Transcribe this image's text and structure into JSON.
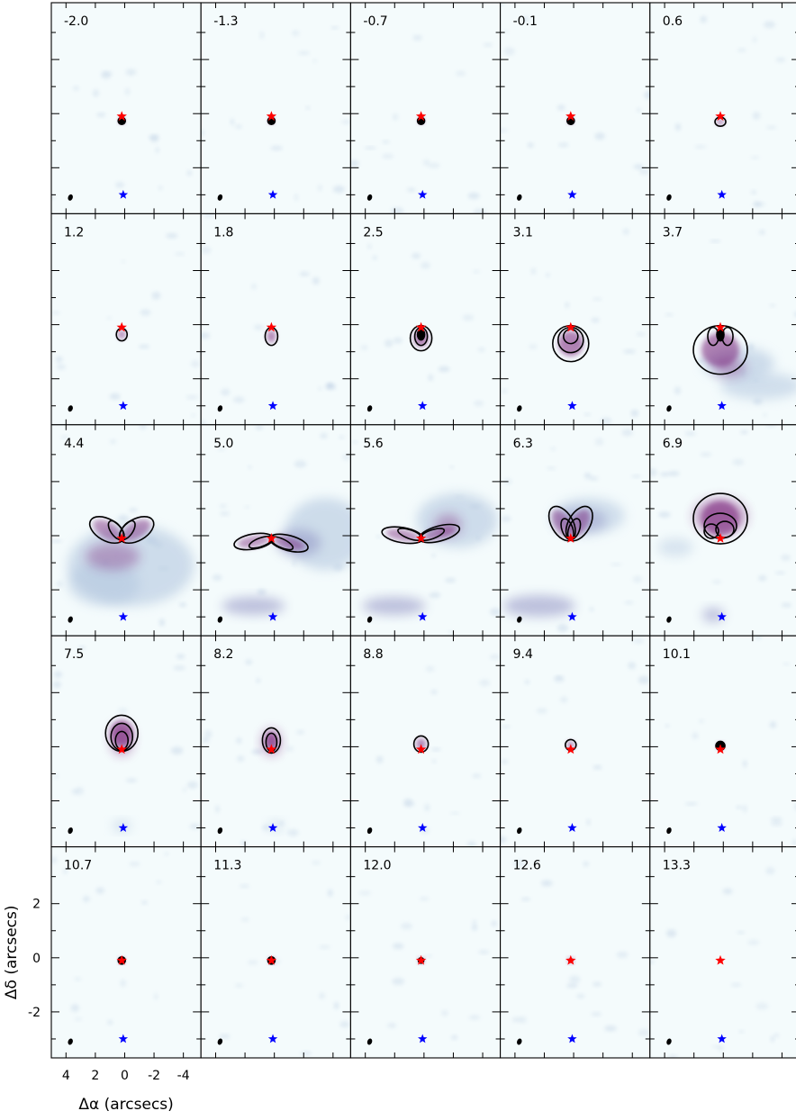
{
  "chart_data": {
    "type": "heatmap",
    "description_kind": "channel-map",
    "channel_labels": [
      "-2.0",
      "-1.3",
      "-0.7",
      "-0.1",
      "0.6",
      "1.2",
      "1.8",
      "2.5",
      "3.1",
      "3.7",
      "4.4",
      "5.0",
      "5.6",
      "6.3",
      "6.9",
      "7.5",
      "8.2",
      "8.8",
      "9.4",
      "10.1",
      "10.7",
      "11.3",
      "12.0",
      "12.6",
      "13.3"
    ],
    "grid": {
      "rows": 5,
      "cols": 5
    },
    "xlabel": "Δα (arcsecs)",
    "ylabel": "Δδ (arcsecs)",
    "xlim": [
      5,
      -5.2
    ],
    "ylim": [
      -3.7,
      4.1
    ],
    "x_ticks": [
      4,
      2,
      0,
      -2,
      -4
    ],
    "x_tick_labels": [
      "4",
      "2",
      "0",
      "-2",
      "-4"
    ],
    "y_ticks": [
      2,
      0,
      -2
    ],
    "y_tick_labels": [
      "2",
      "0",
      "-2"
    ],
    "markers": [
      {
        "name": "",
        "color": "#ff0000",
        "x": 0.2,
        "y": -0.1
      },
      {
        "name": "",
        "color": "#0000ff",
        "x": 0.1,
        "y": -3.0
      }
    ],
    "beam": {
      "x": 3.7,
      "y": -3.1
    },
    "colors": {
      "background": "#f4fbfc",
      "emission_low": "#aec3dd",
      "emission_mid": "#7c7cb8",
      "emission_high": "#7a237a",
      "contour": "#000000"
    }
  }
}
